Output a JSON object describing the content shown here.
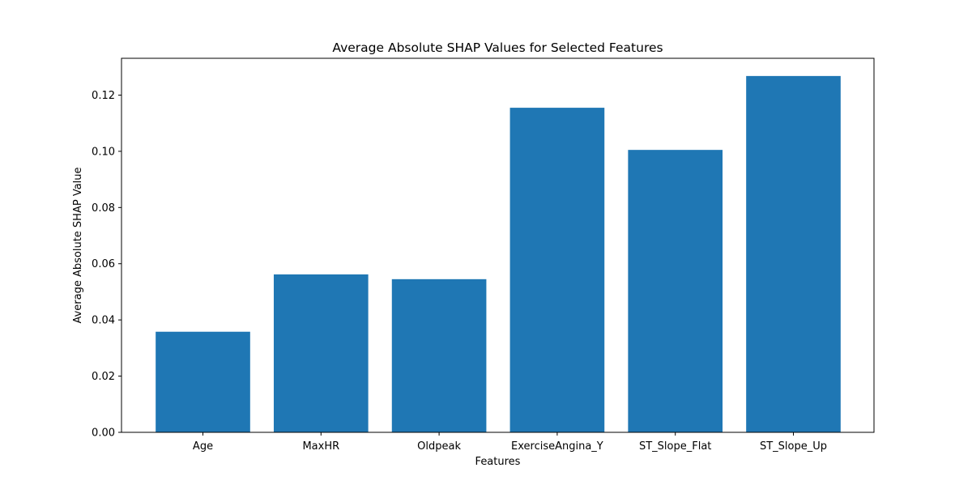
{
  "chart_data": {
    "type": "bar",
    "title": "Average Absolute SHAP Values for Selected Features",
    "xlabel": "Features",
    "ylabel": "Average Absolute SHAP Value",
    "categories": [
      "Age",
      "MaxHR",
      "Oldpeak",
      "ExerciseAngina_Y",
      "ST_Slope_Flat",
      "ST_Slope_Up"
    ],
    "values": [
      0.0358,
      0.0562,
      0.0545,
      0.1155,
      0.1005,
      0.1268
    ],
    "ylim": [
      0,
      0.1331
    ],
    "yticks": [
      0.0,
      0.02,
      0.04,
      0.06,
      0.08,
      0.1,
      0.12
    ],
    "ytick_labels": [
      "0.00",
      "0.02",
      "0.04",
      "0.06",
      "0.08",
      "0.10",
      "0.12"
    ],
    "bar_color": "#1f77b4",
    "grid": false,
    "legend": false
  }
}
